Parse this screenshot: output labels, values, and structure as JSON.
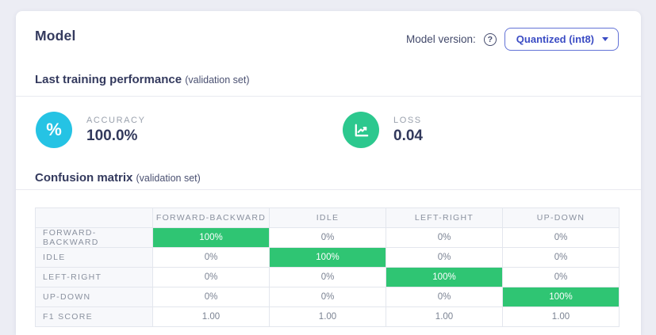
{
  "page": {
    "title": "Model"
  },
  "header": {
    "model_version_label": "Model version:",
    "help_glyph": "?",
    "dropdown_value": "Quantized (int8)"
  },
  "performance": {
    "heading": "Last training performance",
    "heading_suffix": "(validation set)",
    "metrics": [
      {
        "name": "accuracy",
        "label": "ACCURACY",
        "value": "100.0%",
        "icon": "percent-icon",
        "icon_bg": "#25c3e4"
      },
      {
        "name": "loss",
        "label": "LOSS",
        "value": "0.04",
        "icon": "line-chart-icon",
        "icon_bg": "#2cc88e"
      }
    ]
  },
  "confusion": {
    "heading": "Confusion matrix",
    "heading_suffix": "(validation set)",
    "chart_data": {
      "type": "heatmap",
      "columns": [
        "FORWARD-BACKWARD",
        "IDLE",
        "LEFT-RIGHT",
        "UP-DOWN"
      ],
      "rows": [
        {
          "label": "FORWARD-BACKWARD",
          "values": [
            "100%",
            "0%",
            "0%",
            "0%"
          ],
          "highlight": [
            true,
            false,
            false,
            false
          ]
        },
        {
          "label": "IDLE",
          "values": [
            "0%",
            "100%",
            "0%",
            "0%"
          ],
          "highlight": [
            false,
            true,
            false,
            false
          ]
        },
        {
          "label": "LEFT-RIGHT",
          "values": [
            "0%",
            "0%",
            "100%",
            "0%"
          ],
          "highlight": [
            false,
            false,
            true,
            false
          ]
        },
        {
          "label": "UP-DOWN",
          "values": [
            "0%",
            "0%",
            "0%",
            "100%"
          ],
          "highlight": [
            false,
            false,
            false,
            true
          ]
        },
        {
          "label": "F1 SCORE",
          "values": [
            "1.00",
            "1.00",
            "1.00",
            "1.00"
          ],
          "highlight": [
            false,
            false,
            false,
            false
          ]
        }
      ],
      "highlight_color": "#2fc573"
    }
  },
  "colors": {
    "page_bg": "#ecedf4",
    "heading_navy": "#343a5e",
    "accent_indigo": "#3b4cc4",
    "accuracy_cyan": "#25c3e4",
    "loss_green": "#2cc88e",
    "table_green": "#2fc573"
  }
}
